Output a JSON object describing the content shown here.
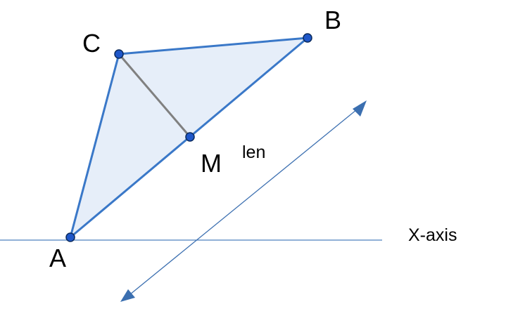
{
  "points": {
    "A": "A",
    "B": "B",
    "C": "C",
    "M": "M"
  },
  "labels": {
    "length": "len",
    "x_axis": "X-axis"
  },
  "colors": {
    "triangle_stroke": "#3a78c8",
    "triangle_fill": "#e6eef9",
    "median_stroke": "#808080",
    "axis_stroke": "#4d80bf",
    "arrow_stroke": "#3b6fb0",
    "point_fill": "#1f57c9",
    "point_stroke": "#0a2a5c"
  }
}
